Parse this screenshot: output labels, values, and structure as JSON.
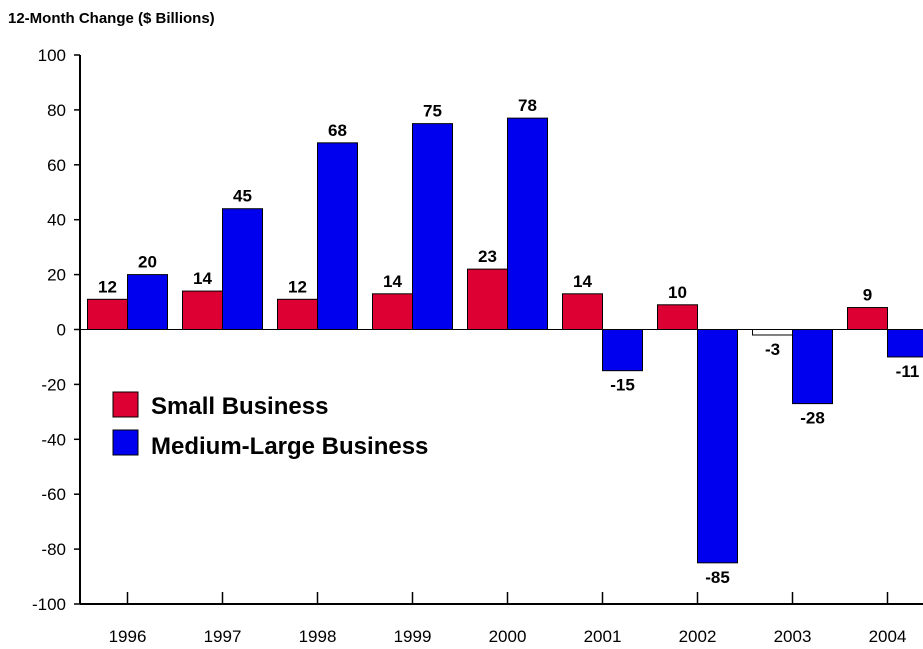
{
  "chart_data": {
    "type": "bar",
    "title": "12-Month Change ($ Billions)",
    "xlabel": "",
    "ylabel": "",
    "categories": [
      "1996",
      "1997",
      "1998",
      "1999",
      "2000",
      "2001",
      "2002",
      "2003",
      "2004"
    ],
    "series": [
      {
        "name": "Small Business",
        "color": "#dd0033",
        "values": [
          12,
          14,
          12,
          14,
          23,
          14,
          10,
          -3,
          9
        ],
        "plotted_values": [
          11,
          14,
          11,
          13,
          22,
          13,
          9,
          -2,
          8
        ]
      },
      {
        "name": "Medium-Large Business",
        "color": "#0000ee",
        "values": [
          20,
          45,
          68,
          75,
          78,
          -15,
          -85,
          -28,
          -11
        ],
        "plotted_values": [
          20,
          44,
          68,
          75,
          77,
          -15,
          -85,
          -27,
          -10
        ]
      }
    ],
    "ylim": [
      -100,
      100
    ],
    "yticks": [
      100,
      80,
      60,
      40,
      20,
      0,
      -20,
      -40,
      -60,
      -80,
      -100
    ],
    "grid": false,
    "legend": "center-left",
    "notes": "Bar for Small Business 2003 is drawn white with a thin outline."
  }
}
